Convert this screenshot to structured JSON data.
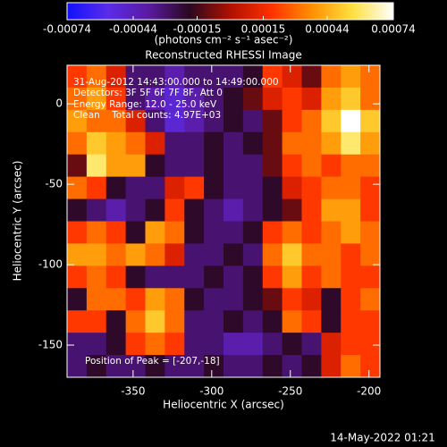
{
  "chart_data": {
    "type": "heatmap",
    "title": "Reconstructed RHESSI Image",
    "x_label": "Heliocentric X (arcsec)",
    "y_label": "Heliocentric Y (arcsec)",
    "xlim": [
      -392,
      -193
    ],
    "ylim": [
      -170,
      24
    ],
    "xticks": [
      -350,
      -300,
      -250,
      -200
    ],
    "yticks": [
      0,
      -50,
      -100,
      -150
    ],
    "clim": [
      -0.00074,
      0.00074
    ],
    "cticks": [
      -0.00074,
      -0.00044,
      -0.00015,
      0.00015,
      0.00044,
      0.00074
    ],
    "colorbar_label": "(photons cm⁻² s⁻¹ asec⁻²)",
    "colorscale": [
      "#1010ff",
      "#5a2ce8",
      "#5a1aa0",
      "#2a0820",
      "#b01000",
      "#ff3000",
      "#ff9000",
      "#ffe040",
      "#ffffff"
    ],
    "annotations": [
      "31-Aug-2012 14:43:00.000 to 14:49:00.000",
      "Detectors: 3F 5F 6F 7F 8F, Att 0",
      "Energy Range: 12.0 - 25.0 keV",
      "Clean    Total counts: 4.97E+03",
      "Position of Peak = [-207,-18]"
    ],
    "footer": "14-May-2022 01:21",
    "z": [
      [
        0.0002,
        0.0003,
        0.0001,
        -0.0003,
        -0.0003,
        -0.0004,
        -0.0003,
        -0.0003,
        -0.0003,
        -0.0002,
        0.0002,
        0.0001,
        -0.0001,
        0.0003,
        0.0004,
        0.0003
      ],
      [
        0.0003,
        0.0004,
        0.0002,
        -0.0003,
        -0.0004,
        -0.0005,
        -0.0004,
        -0.0003,
        -0.0002,
        -0.0001,
        0.0001,
        0.0002,
        0.0001,
        0.0004,
        0.0005,
        0.0003
      ],
      [
        0.0004,
        0.0003,
        0.0003,
        0.0001,
        -0.0003,
        -0.0005,
        -0.0004,
        -0.0003,
        -0.0002,
        -0.0003,
        -0.0001,
        0.0002,
        0.0003,
        0.0005,
        0.00074,
        0.0005
      ],
      [
        0.0003,
        0.0005,
        0.0004,
        0.0003,
        0.0001,
        -0.0003,
        -0.0003,
        -0.0002,
        -0.0003,
        -0.0002,
        -0.0001,
        0.0003,
        0.0003,
        0.0004,
        0.0006,
        0.0004
      ],
      [
        -0.0001,
        0.0006,
        0.0004,
        0.0004,
        -0.0002,
        -0.0003,
        -0.0003,
        -0.0002,
        -0.0003,
        -0.0003,
        -0.0001,
        0.0002,
        0.0003,
        0.0002,
        0.0003,
        0.0003
      ],
      [
        0.0003,
        0.0002,
        -0.0002,
        -0.0003,
        -0.0003,
        0.0001,
        0.0002,
        -0.0002,
        -0.0003,
        -0.0003,
        -0.0002,
        0.0001,
        0.0002,
        0.0003,
        0.0003,
        0.0002
      ],
      [
        -0.0002,
        -0.0003,
        -0.0004,
        -0.0003,
        -0.0002,
        0.0002,
        -0.0002,
        -0.0003,
        -0.0004,
        -0.0003,
        -0.0002,
        -0.0001,
        0.0002,
        0.0004,
        0.0004,
        0.0002
      ],
      [
        0.0002,
        0.0003,
        0.0002,
        -0.0002,
        0.0004,
        0.0003,
        -0.0002,
        -0.0003,
        -0.0003,
        -0.0002,
        0.0002,
        0.0003,
        0.0002,
        0.0003,
        0.0004,
        0.0003
      ],
      [
        0.0004,
        0.0004,
        0.0003,
        0.0004,
        0.0003,
        0.0001,
        -0.0003,
        -0.0003,
        -0.0002,
        -0.0003,
        0.0003,
        0.0005,
        0.0003,
        0.0003,
        0.0002,
        0.0003
      ],
      [
        0.0002,
        0.0003,
        0.0002,
        -0.0002,
        -0.0003,
        -0.0003,
        -0.0003,
        -0.0002,
        -0.0003,
        -0.0002,
        0.0002,
        0.0004,
        0.0002,
        0.0003,
        0.0002,
        0.0002
      ],
      [
        -0.0002,
        0.0003,
        0.0003,
        0.0002,
        0.0004,
        0.0003,
        -0.0002,
        -0.0003,
        -0.0003,
        -0.0002,
        -0.0001,
        0.0002,
        0.0001,
        -0.0002,
        0.0002,
        0.0003
      ],
      [
        0.0002,
        0.0002,
        -0.0002,
        0.0003,
        0.0005,
        0.0003,
        -0.0003,
        -0.0003,
        -0.0002,
        -0.0003,
        -0.0002,
        0.0003,
        0.0002,
        -0.0002,
        0.0002,
        0.0002
      ],
      [
        -0.0003,
        -0.0003,
        -0.0002,
        0.0002,
        0.0003,
        0.0002,
        -0.0003,
        -0.0003,
        -0.0004,
        -0.0004,
        -0.0003,
        -0.0002,
        -0.0003,
        0.0001,
        0.0002,
        0.0002
      ],
      [
        -0.0003,
        -0.0002,
        -0.0003,
        -0.0003,
        -0.0002,
        -0.0003,
        -0.0003,
        -0.0002,
        -0.0003,
        -0.0003,
        -0.0002,
        -0.0003,
        -0.0002,
        0.0001,
        0.0003,
        0.0002
      ]
    ]
  }
}
